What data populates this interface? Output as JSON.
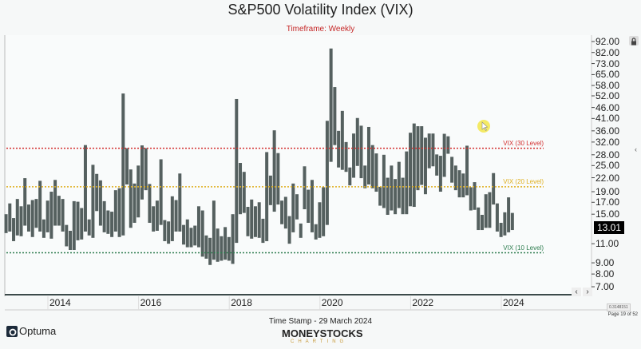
{
  "header": {
    "title": "S&P500 Volatility Index (VIX)",
    "timeframe": "Timeframe: Weekly"
  },
  "footer": {
    "timestamp": "Time Stamp - 29 March 2024",
    "brand": "MONEYSTOCKS",
    "brand_sub": "CHARTING",
    "optuma": "Optuma",
    "page": "Page 19 of 52",
    "scale": "0.3148151"
  },
  "colors": {
    "bars": "#55605f",
    "level30": "#d32f2f",
    "level20": "#e0b020",
    "level10": "#2e7d4f",
    "accent_title": "#c62828"
  },
  "icons": [
    "lock-icon",
    "chevron-left-icon",
    "chevron-right-icon",
    "collapse-panel-icon",
    "optuma-logo-icon"
  ],
  "chart_data": {
    "type": "bar",
    "subtype": "high-low range bars",
    "title": "S&P500 Volatility Index (VIX)",
    "y_scale": "log",
    "ylim": [
      7,
      92
    ],
    "xlim": [
      "2013-01",
      "2024-03"
    ],
    "grid": false,
    "y_ticks": [
      "92.00",
      "82.00",
      "73.00",
      "65.00",
      "58.00",
      "52.00",
      "46.00",
      "41.00",
      "36.00",
      "32.00",
      "28.00",
      "25.00",
      "22.00",
      "19.00",
      "17.00",
      "15.00",
      "11.00",
      "9.00",
      "8.00",
      "7.00"
    ],
    "x_ticks": [
      "2014",
      "2016",
      "2018",
      "2020",
      "2022",
      "2024"
    ],
    "last_value": "13.01",
    "reference_lines": [
      {
        "label": "VIX (30 Level)",
        "value": 30
      },
      {
        "label": "VIX (20 Level)",
        "value": 20
      },
      {
        "label": "VIX (10 Level)",
        "value": 10
      }
    ],
    "series": [
      [
        [
          "2013-01",
          15,
          12.3
        ],
        [
          "2013-02",
          16.8,
          12.5
        ],
        [
          "2013-03",
          14.4,
          11.3
        ],
        [
          "2013-04",
          17.6,
          12
        ],
        [
          "2013-05",
          16.3,
          11.9
        ],
        [
          "2013-06",
          21.9,
          13.3
        ],
        [
          "2013-07",
          16.6,
          12.5
        ],
        [
          "2013-08",
          17.4,
          11.8
        ],
        [
          "2013-09",
          17.6,
          13
        ],
        [
          "2013-10",
          21.3,
          12.5
        ],
        [
          "2013-11",
          14.2,
          11.7
        ],
        [
          "2013-12",
          17.3,
          12.4
        ],
        [
          "2014-01",
          19,
          11.6
        ],
        [
          "2014-02",
          21.5,
          13.3
        ],
        [
          "2014-03",
          18.2,
          13.3
        ],
        [
          "2014-04",
          17.6,
          12.5
        ],
        [
          "2014-05",
          13.4,
          10.7
        ],
        [
          "2014-06",
          12.6,
          10.3
        ],
        [
          "2014-07",
          17.2,
          10.3
        ],
        [
          "2014-08",
          17.1,
          11.4
        ],
        [
          "2014-09",
          16,
          11.5
        ],
        [
          "2014-10",
          31,
          12.5
        ],
        [
          "2014-11",
          14.2,
          12
        ],
        [
          "2014-12",
          25.2,
          11.7
        ],
        [
          "2015-01",
          22.9,
          15.5
        ],
        [
          "2015-02",
          21.4,
          13.3
        ],
        [
          "2015-03",
          17.2,
          12.4
        ],
        [
          "2015-04",
          15.6,
          12.2
        ],
        [
          "2015-05",
          15.4,
          11.8
        ],
        [
          "2015-06",
          19.3,
          12.5
        ],
        [
          "2015-07",
          19.7,
          11.8
        ],
        [
          "2015-08",
          53.3,
          12
        ],
        [
          "2015-09",
          30,
          20.5
        ],
        [
          "2015-10",
          24,
          13
        ],
        [
          "2015-11",
          20.7,
          13.7
        ],
        [
          "2015-12",
          25,
          14.5
        ],
        [
          "2016-01",
          30.9,
          17.5
        ],
        [
          "2016-02",
          30,
          19.3
        ],
        [
          "2016-03",
          20.6,
          13.7
        ],
        [
          "2016-04",
          16.3,
          12.5
        ],
        [
          "2016-05",
          17.3,
          12.6
        ],
        [
          "2016-06",
          26.7,
          13.4
        ],
        [
          "2016-07",
          14.1,
          11.3
        ],
        [
          "2016-08",
          13.9,
          11
        ],
        [
          "2016-09",
          18.1,
          11.3
        ],
        [
          "2016-10",
          17.4,
          12.5
        ],
        [
          "2016-11",
          23,
          12.5
        ],
        [
          "2016-12",
          13.4,
          10.9
        ],
        [
          "2017-01",
          14.2,
          10.6
        ],
        [
          "2017-02",
          13,
          10.6
        ],
        [
          "2017-03",
          13.3,
          10.8
        ],
        [
          "2017-04",
          16.3,
          10.6
        ],
        [
          "2017-05",
          15.6,
          9.6
        ],
        [
          "2017-06",
          12,
          9.4
        ],
        [
          "2017-07",
          11.7,
          8.8
        ],
        [
          "2017-08",
          17.3,
          9.3
        ],
        [
          "2017-09",
          12.9,
          9.1
        ],
        [
          "2017-10",
          11.9,
          9.2
        ],
        [
          "2017-11",
          13.1,
          9.3
        ],
        [
          "2017-12",
          11.8,
          9.2
        ],
        [
          "2018-01",
          15,
          8.9
        ],
        [
          "2018-02",
          50.3,
          11.1
        ],
        [
          "2018-03",
          25.7,
          15
        ],
        [
          "2018-04",
          23.4,
          15.2
        ],
        [
          "2018-05",
          16.2,
          11.9
        ],
        [
          "2018-06",
          17.5,
          11.6
        ],
        [
          "2018-07",
          16.3,
          11.8
        ],
        [
          "2018-08",
          17,
          11.7
        ],
        [
          "2018-09",
          14.3,
          11.1
        ],
        [
          "2018-10",
          28.8,
          11.3
        ],
        [
          "2018-11",
          22.5,
          16.5
        ],
        [
          "2018-12",
          36.2,
          15.4
        ],
        [
          "2019-01",
          28.5,
          16.6
        ],
        [
          "2019-02",
          17.3,
          13.5
        ],
        [
          "2019-03",
          18,
          12.9
        ],
        [
          "2019-04",
          14.7,
          11
        ],
        [
          "2019-05",
          20.7,
          12.4
        ],
        [
          "2019-06",
          18.5,
          14.2
        ],
        [
          "2019-07",
          13.6,
          11.7
        ],
        [
          "2019-08",
          24.8,
          15.8
        ],
        [
          "2019-09",
          19.4,
          13.7
        ],
        [
          "2019-10",
          21.5,
          12.4
        ],
        [
          "2019-11",
          13.5,
          11.5
        ],
        [
          "2019-12",
          17,
          11.7
        ],
        [
          "2020-01",
          19.9,
          11.9
        ],
        [
          "2020-02",
          40,
          13.4
        ],
        [
          "2020-03",
          85.5,
          26
        ],
        [
          "2020-04",
          57,
          31
        ],
        [
          "2020-05",
          36,
          24.5
        ],
        [
          "2020-06",
          44.4,
          23.9
        ],
        [
          "2020-07",
          32,
          23.4
        ],
        [
          "2020-08",
          24.5,
          20.3
        ],
        [
          "2020-09",
          35,
          22
        ],
        [
          "2020-10",
          41.2,
          24.9
        ],
        [
          "2020-11",
          38,
          21.9
        ],
        [
          "2020-12",
          25,
          19.7
        ],
        [
          "2021-01",
          37.5,
          20.5
        ],
        [
          "2021-02",
          31,
          19.7
        ],
        [
          "2021-03",
          28.4,
          19
        ],
        [
          "2021-04",
          20,
          16.4
        ],
        [
          "2021-05",
          28,
          16
        ],
        [
          "2021-06",
          22,
          14.9
        ],
        [
          "2021-07",
          25,
          15.6
        ],
        [
          "2021-08",
          21.7,
          15
        ],
        [
          "2021-09",
          26,
          16
        ],
        [
          "2021-10",
          22,
          15
        ],
        [
          "2021-11",
          29,
          15
        ],
        [
          "2021-12",
          35.3,
          16.3
        ],
        [
          "2022-01",
          38.9,
          16.2
        ],
        [
          "2022-02",
          37.8,
          19.3
        ],
        [
          "2022-03",
          37.8,
          20.4
        ],
        [
          "2022-04",
          33.5,
          18.5
        ],
        [
          "2022-05",
          35,
          24.3
        ],
        [
          "2022-06",
          35,
          24.8
        ],
        [
          "2022-07",
          28.1,
          22.5
        ],
        [
          "2022-08",
          27.7,
          19
        ],
        [
          "2022-09",
          34.9,
          22.2
        ],
        [
          "2022-10",
          34,
          28.3
        ],
        [
          "2022-11",
          27.4,
          20.9
        ],
        [
          "2022-12",
          25,
          19.3
        ],
        [
          "2023-01",
          23.8,
          17.9
        ],
        [
          "2023-02",
          23,
          17.9
        ],
        [
          "2023-03",
          30.8,
          18.3
        ],
        [
          "2023-04",
          19.9,
          15.6
        ],
        [
          "2023-05",
          21,
          15.7
        ],
        [
          "2023-06",
          16.1,
          12.7
        ],
        [
          "2023-07",
          14.9,
          12.7
        ],
        [
          "2023-08",
          18.5,
          13
        ],
        [
          "2023-09",
          18.9,
          13
        ],
        [
          "2023-10",
          23.1,
          16.6
        ],
        [
          "2023-11",
          16.8,
          12.5
        ],
        [
          "2023-12",
          13.7,
          11.8
        ],
        [
          "2024-01",
          15.3,
          12
        ],
        [
          "2024-02",
          17.9,
          12.4
        ],
        [
          "2024-03",
          15.2,
          12.7
        ]
      ]
    ]
  }
}
